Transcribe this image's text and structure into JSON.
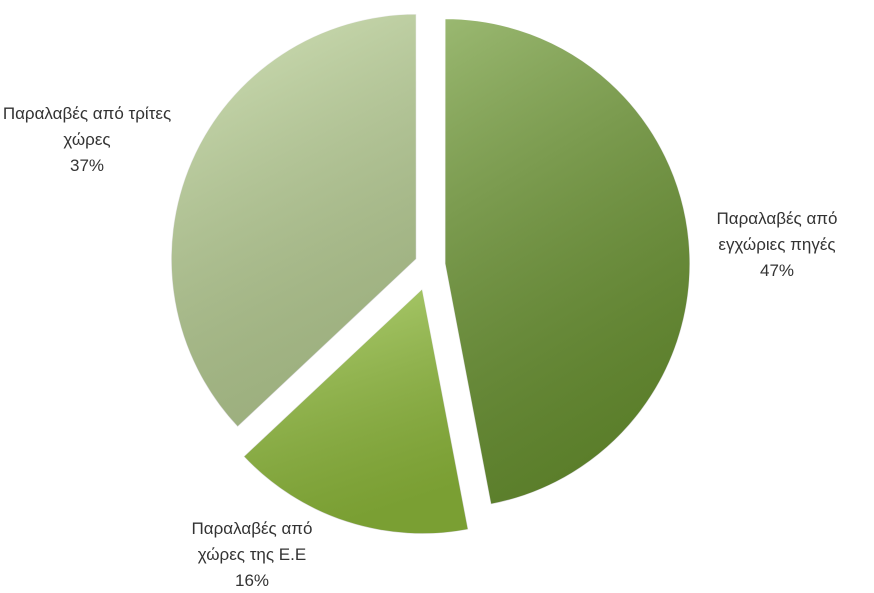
{
  "chart_data": {
    "type": "pie",
    "categories": [
      "Παραλαβές από εγχώριες πηγές",
      "Παραλαβές από χώρες της Ε.Ε",
      "Παραλαβές από τρίτες χώρες"
    ],
    "values": [
      47,
      16,
      37
    ],
    "value_labels": [
      "47%",
      "16%",
      "37%"
    ],
    "colors": [
      "#6f9a34",
      "#95c23e",
      "#bfd69a"
    ]
  }
}
